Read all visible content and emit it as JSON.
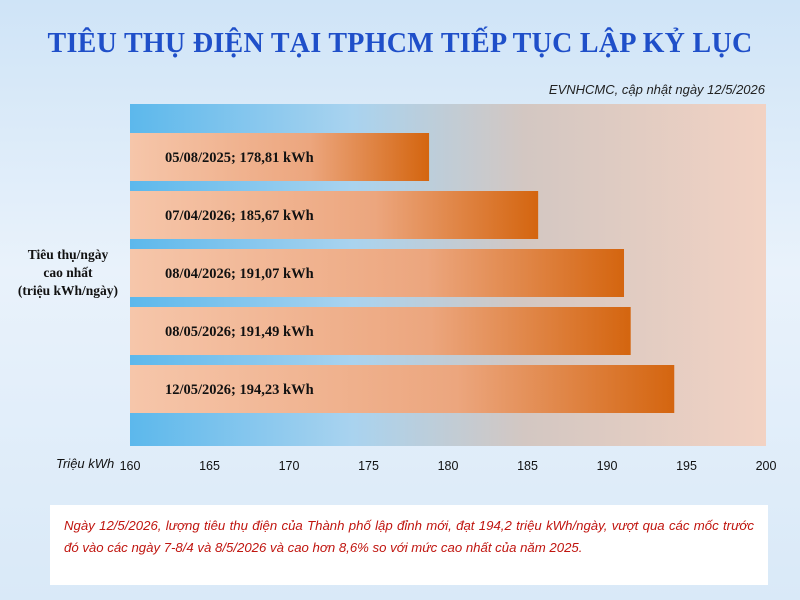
{
  "chart_data": {
    "type": "bar",
    "orientation": "horizontal",
    "title": "TIÊU THỤ ĐIỆN TẠI TPHCM TIẾP TỤC LẬP KỶ LỤC",
    "source_note": "EVNHCMC, cập nhật ngày 12/5/2026",
    "ylabel_lines": [
      "Tiêu thụ/ngày",
      "cao nhất",
      "(triệu kWh/ngày)"
    ],
    "xlabel": "Triệu kWh",
    "xlim": [
      160,
      200
    ],
    "xticks": [
      "160",
      "165",
      "170",
      "175",
      "180",
      "185",
      "190",
      "195",
      "200"
    ],
    "categories": [
      "05/08/2025",
      "07/04/2026",
      "08/04/2026",
      "08/05/2026",
      "12/05/2026"
    ],
    "values": [
      178.81,
      185.67,
      191.07,
      191.49,
      194.23
    ],
    "bar_labels": [
      "05/08/2025; 178,81 kWh",
      "07/04/2026; 185,67 kWh",
      "08/04/2026; 191,07 kWh",
      "08/05/2026; 191,49 kWh",
      "12/05/2026; 194,23 kWh"
    ],
    "colors": {
      "bar_start": "#f6c6aa",
      "bar_end": "#d4650f",
      "title": "#1f4fc9",
      "note_text": "#c0150f"
    },
    "legend": "none",
    "grid": false
  },
  "note": "Ngày 12/5/2026, lượng tiêu thụ điện của Thành phố lập đỉnh mới, đạt 194,2 triệu kWh/ngày, vượt qua các mốc trước đó vào các ngày 7-8/4 và 8/5/2026 và cao hơn 8,6% so với mức cao nhất của năm 2025."
}
